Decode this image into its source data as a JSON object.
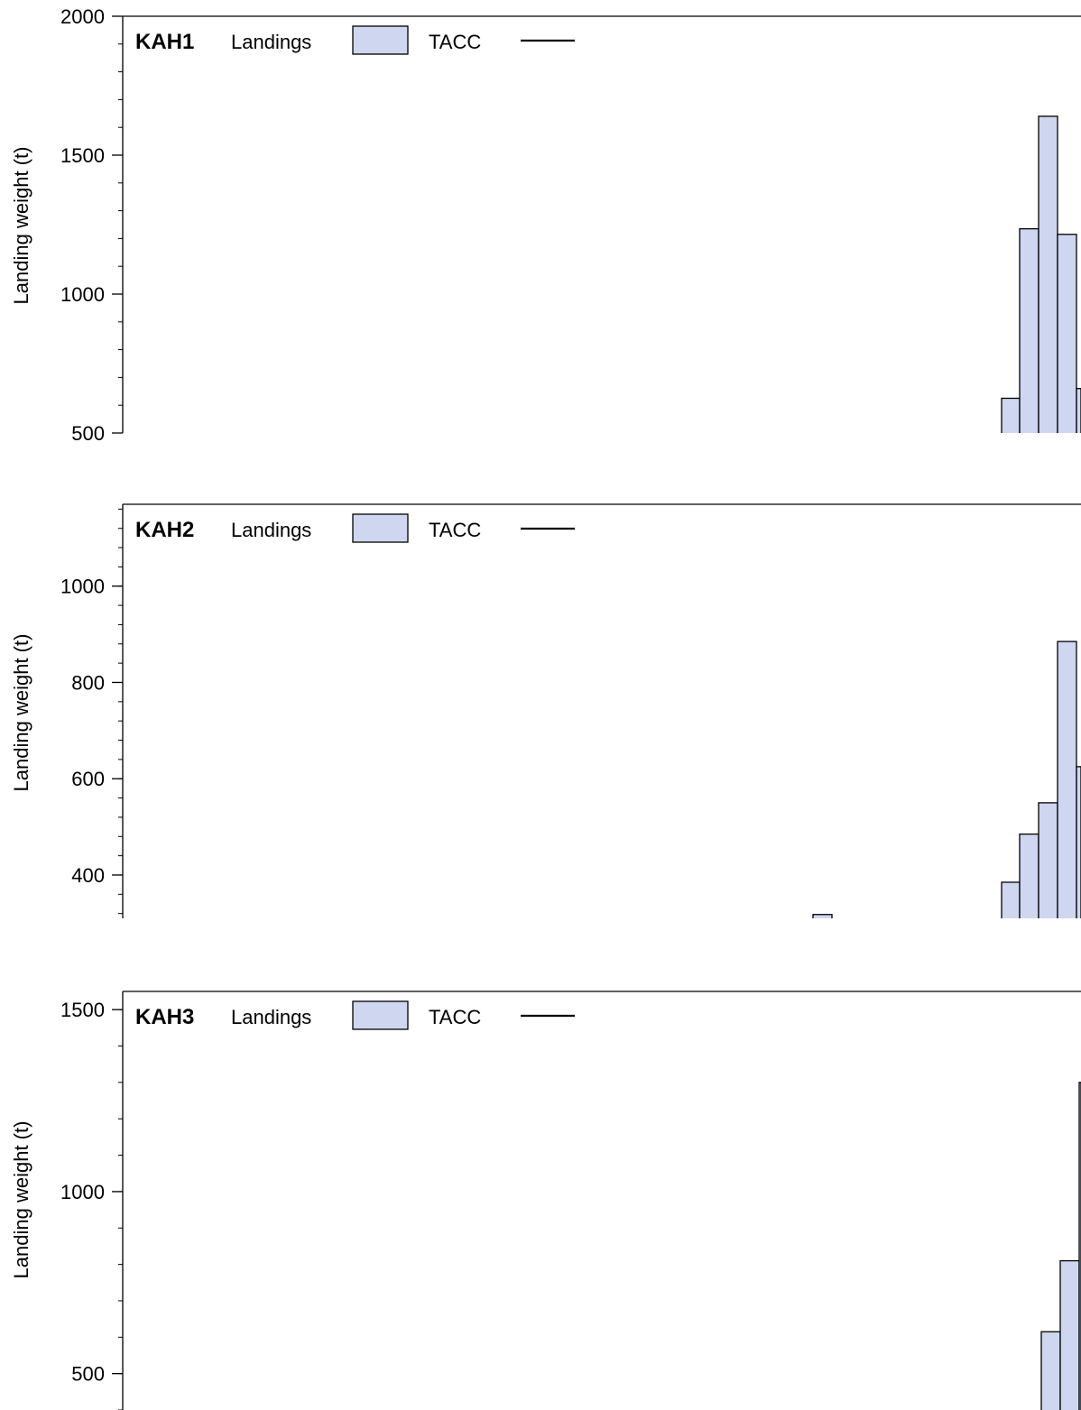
{
  "chart_data": [
    {
      "type": "bar",
      "title": "KAH1",
      "ylabel": "Landing weight (t)",
      "legend": {
        "placement": "top-left",
        "entries": [
          "Landings",
          "TACC"
        ]
      },
      "ylim": [
        500,
        2000
      ],
      "yticks": [
        500,
        1000,
        1500,
        2000
      ],
      "bar_fill": "#cfd6ef",
      "series": [
        {
          "name": "Landings",
          "values": [
            625,
            1235,
            1640,
            1215,
            660
          ]
        }
      ]
    },
    {
      "type": "bar",
      "title": "KAH2",
      "ylabel": "Landing weight (t)",
      "legend": {
        "placement": "top-left",
        "entries": [
          "Landings",
          "TACC"
        ]
      },
      "ylim": [
        310,
        1170
      ],
      "yticks": [
        400,
        600,
        800,
        1000
      ],
      "bar_fill": "#cfd6ef",
      "series": [
        {
          "name": "Landings",
          "values": [
            318,
            385,
            485,
            550,
            885,
            625
          ]
        }
      ]
    },
    {
      "type": "bar",
      "title": "KAH3",
      "ylabel": "Landing weight (t)",
      "legend": {
        "placement": "top-left",
        "entries": [
          "Landings",
          "TACC"
        ]
      },
      "ylim": [
        400,
        1550
      ],
      "yticks": [
        500,
        1000,
        1500
      ],
      "bar_fill": "#cfd6ef",
      "series": [
        {
          "name": "Landings",
          "values": [
            615,
            810,
            1300
          ]
        }
      ]
    }
  ]
}
